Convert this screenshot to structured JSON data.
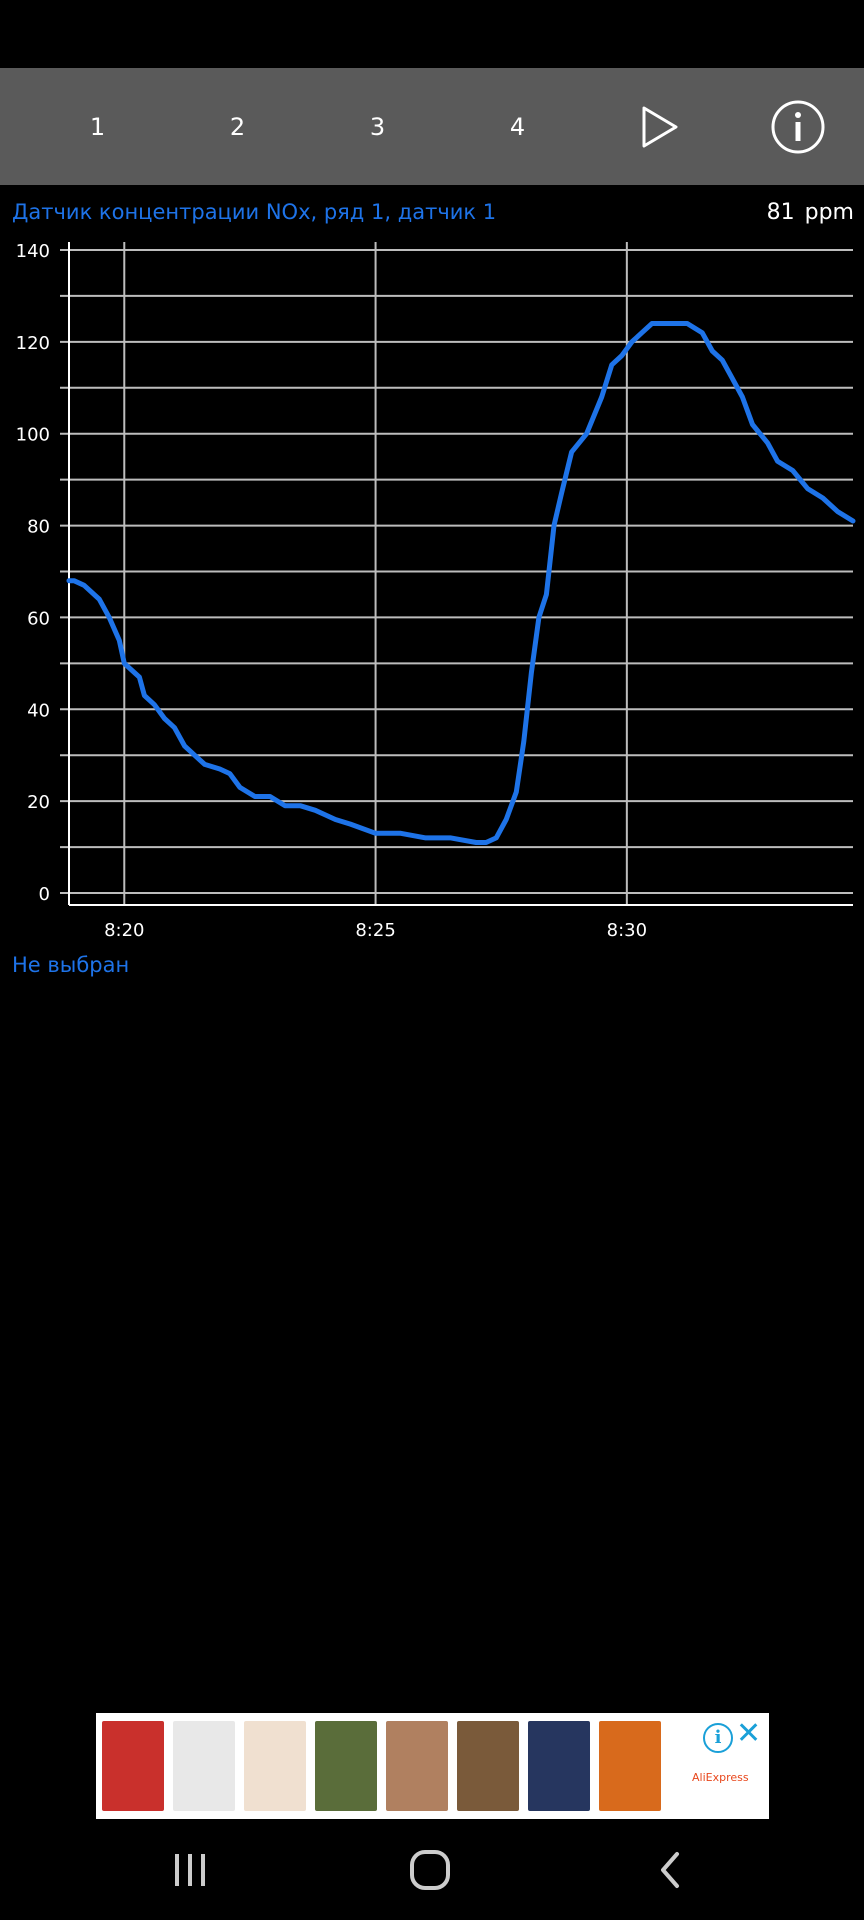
{
  "toolbar": {
    "tabs": [
      {
        "label": "1"
      },
      {
        "label": "2"
      },
      {
        "label": "3"
      },
      {
        "label": "4"
      }
    ],
    "play_icon": "play-icon",
    "info_icon": "info-icon"
  },
  "sensor": {
    "title": "Датчик концентрации NOx, ряд 1, датчик 1",
    "value": "81",
    "unit": "ppm"
  },
  "status": "Не выбран",
  "chart_data": {
    "type": "line",
    "xlabel": "",
    "ylabel": "",
    "x_ticks": [
      "8:20",
      "8:25",
      "8:30"
    ],
    "y_ticks": [
      0,
      20,
      40,
      60,
      80,
      100,
      120,
      140
    ],
    "ylim": [
      0,
      140
    ],
    "xlim": [
      "8:18.9",
      "8:34.5"
    ],
    "grid": true,
    "line_color": "#1e73e8",
    "series": [
      {
        "x": [
          18.9,
          19.0,
          19.2,
          19.5,
          19.7,
          19.9,
          20.0,
          20.2,
          20.3,
          20.4,
          20.6,
          20.8,
          21.0,
          21.2,
          21.4,
          21.6,
          21.9,
          22.1,
          22.3,
          22.6,
          22.9,
          23.2,
          23.5,
          23.8,
          24.0,
          24.2,
          24.5,
          25.0,
          25.5,
          26.0,
          26.5,
          27.0,
          27.2,
          27.4,
          27.6,
          27.8,
          27.95,
          28.1,
          28.25,
          28.4,
          28.55,
          28.7,
          28.9,
          29.2,
          29.5,
          29.7,
          29.9,
          30.1,
          30.3,
          30.5,
          30.8,
          31.2,
          31.5,
          31.7,
          31.9,
          32.1,
          32.3,
          32.5,
          32.8,
          33.0,
          33.3,
          33.6,
          33.9,
          34.2,
          34.5
        ],
        "y": [
          68,
          68,
          67,
          64,
          60,
          55,
          50,
          48,
          47,
          43,
          41,
          38,
          36,
          32,
          30,
          28,
          27,
          26,
          23,
          21,
          21,
          19,
          19,
          18,
          17,
          16,
          15,
          13,
          13,
          12,
          12,
          11,
          11,
          12,
          16,
          22,
          33,
          48,
          60,
          65,
          80,
          87,
          96,
          100,
          108,
          115,
          117,
          120,
          122,
          124,
          124,
          124,
          122,
          118,
          116,
          112,
          108,
          102,
          98,
          94,
          92,
          88,
          86,
          83,
          81
        ]
      }
    ]
  },
  "ad": {
    "brand": "AliExpress",
    "thumb_colors": [
      "#c9302c",
      "#e8e8e8",
      "#f0e0d0",
      "#5a6d3a",
      "#b08060",
      "#7a5a3a",
      "#26365f",
      "#d86a1c"
    ],
    "info_icon": "info-icon",
    "close_icon": "close-icon"
  },
  "navbar": {
    "recents_icon": "recents-icon",
    "home_icon": "home-icon",
    "back_icon": "back-icon"
  }
}
